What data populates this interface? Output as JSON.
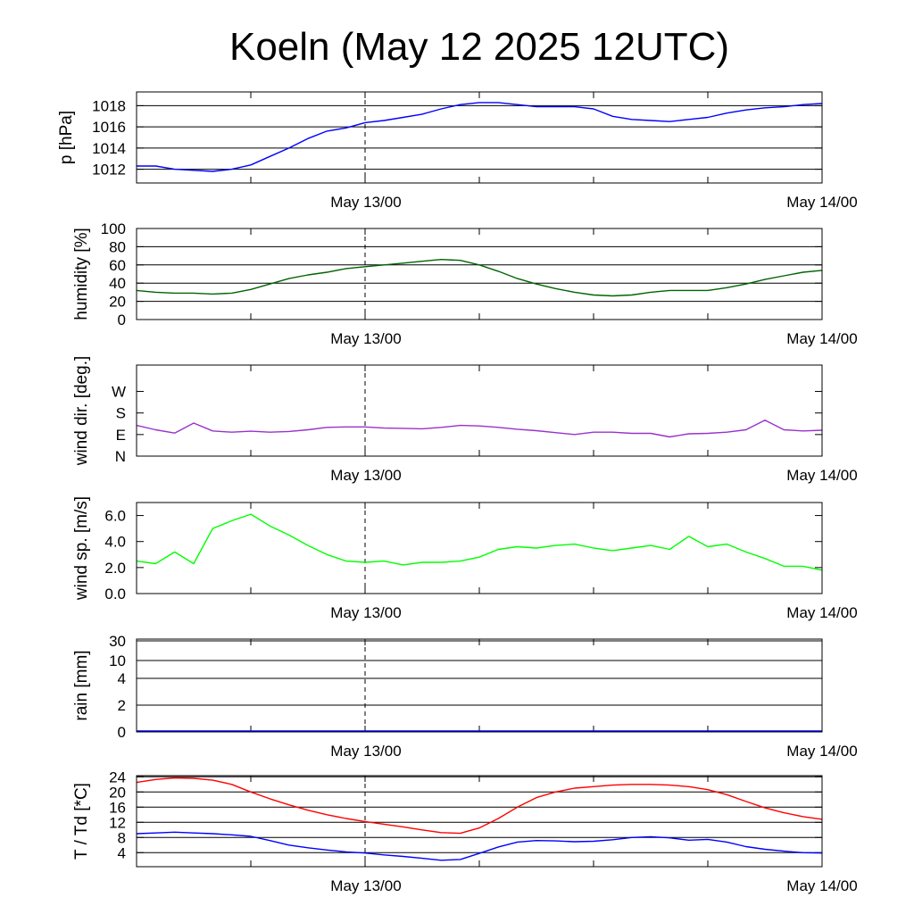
{
  "title": "Koeln (May 12 2025 12UTC)",
  "chart_data": [
    {
      "type": "line",
      "ylabel": "p [hPa]",
      "ylim": [
        1010.7,
        1019.3
      ],
      "yticks": [
        "1012",
        "1014",
        "1016",
        "1018"
      ],
      "grid": "horizontal",
      "xticks": [
        "May 13/00",
        "May 14/00"
      ],
      "x_hours": [
        0,
        1,
        2,
        3,
        4,
        5,
        6,
        7,
        8,
        9,
        10,
        11,
        12,
        13,
        14,
        15,
        16,
        17,
        18,
        19,
        20,
        21,
        22,
        23,
        24,
        25,
        26,
        27,
        28,
        29,
        30,
        31,
        32,
        33,
        34,
        35,
        36
      ],
      "series": [
        {
          "color": "#0000ff",
          "values": [
            1012.3,
            1012.3,
            1012.0,
            1011.9,
            1011.8,
            1012.0,
            1012.4,
            1013.2,
            1014.0,
            1014.9,
            1015.6,
            1015.9,
            1016.4,
            1016.6,
            1016.9,
            1017.2,
            1017.7,
            1018.1,
            1018.3,
            1018.3,
            1018.1,
            1017.9,
            1017.9,
            1017.9,
            1017.7,
            1017.0,
            1016.7,
            1016.6,
            1016.5,
            1016.7,
            1016.9,
            1017.3,
            1017.6,
            1017.8,
            1017.9,
            1018.1,
            1018.2
          ]
        }
      ]
    },
    {
      "type": "line",
      "ylabel": "humidity [%]",
      "ylim": [
        0,
        100
      ],
      "yticks": [
        "0",
        "20",
        "40",
        "60",
        "80",
        "100"
      ],
      "grid": "horizontal",
      "xticks": [
        "May 13/00",
        "May 14/00"
      ],
      "x_hours": [
        0,
        1,
        2,
        3,
        4,
        5,
        6,
        7,
        8,
        9,
        10,
        11,
        12,
        13,
        14,
        15,
        16,
        17,
        18,
        19,
        20,
        21,
        22,
        23,
        24,
        25,
        26,
        27,
        28,
        29,
        30,
        31,
        32,
        33,
        34,
        35,
        36
      ],
      "series": [
        {
          "color": "#006400",
          "values": [
            32,
            30,
            29,
            29,
            28,
            29,
            33,
            39,
            45,
            49,
            52,
            56,
            58,
            60,
            62,
            64,
            66,
            65,
            60,
            53,
            45,
            39,
            34,
            30,
            27,
            26,
            27,
            30,
            32,
            32,
            32,
            35,
            39,
            44,
            48,
            52,
            54
          ]
        }
      ]
    },
    {
      "type": "line",
      "ylabel": "wind dir. [deg.]",
      "ylim": [
        0,
        380
      ],
      "yticks": [
        "N",
        "E",
        "S",
        "W"
      ],
      "ytick_values": [
        0,
        90,
        180,
        270
      ],
      "grid": "none",
      "xticks": [
        "May 13/00",
        "May 14/00"
      ],
      "x_hours": [
        0,
        1,
        2,
        3,
        4,
        5,
        6,
        7,
        8,
        9,
        10,
        11,
        12,
        13,
        14,
        15,
        16,
        17,
        18,
        19,
        20,
        21,
        22,
        23,
        24,
        25,
        26,
        27,
        28,
        29,
        30,
        31,
        32,
        33,
        34,
        35,
        36
      ],
      "series": [
        {
          "color": "#9932cc",
          "values": [
            128,
            110,
            96,
            138,
            105,
            100,
            104,
            100,
            103,
            110,
            120,
            122,
            122,
            117,
            116,
            114,
            120,
            128,
            126,
            120,
            112,
            106,
            98,
            90,
            100,
            100,
            95,
            95,
            80,
            93,
            95,
            100,
            110,
            150,
            110,
            105,
            108
          ]
        }
      ]
    },
    {
      "type": "line",
      "ylabel": "wind sp. [m/s]",
      "ylim": [
        0,
        7
      ],
      "yticks": [
        "0.0",
        "2.0",
        "4.0",
        "6.0"
      ],
      "grid": "none",
      "xticks": [
        "May 13/00",
        "May 14/00"
      ],
      "x_hours": [
        0,
        1,
        2,
        3,
        4,
        5,
        6,
        7,
        8,
        9,
        10,
        11,
        12,
        13,
        14,
        15,
        16,
        17,
        18,
        19,
        20,
        21,
        22,
        23,
        24,
        25,
        26,
        27,
        28,
        29,
        30,
        31,
        32,
        33,
        34,
        35,
        36
      ],
      "series": [
        {
          "color": "#00ff00",
          "values": [
            2.5,
            2.3,
            3.2,
            2.3,
            5.0,
            5.6,
            6.1,
            5.2,
            4.5,
            3.7,
            3.0,
            2.5,
            2.4,
            2.5,
            2.2,
            2.4,
            2.4,
            2.5,
            2.8,
            3.4,
            3.6,
            3.5,
            3.7,
            3.8,
            3.5,
            3.3,
            3.5,
            3.7,
            3.4,
            4.4,
            3.6,
            3.8,
            3.2,
            2.7,
            2.1,
            2.1,
            1.8
          ]
        }
      ]
    },
    {
      "type": "line",
      "ylabel": "rain [mm]",
      "yticks": [
        "0",
        "2",
        "4",
        "10",
        "30"
      ],
      "grid": "horizontal",
      "xticks": [
        "May 13/00",
        "May 14/00"
      ],
      "x_hours": [
        0,
        36
      ],
      "series": [
        {
          "color": "#0000ff",
          "values": [
            0,
            0
          ]
        }
      ]
    },
    {
      "type": "line",
      "ylabel": "T / Td [*C]",
      "ylim": [
        0.3,
        24.3
      ],
      "yticks": [
        "4",
        "8",
        "12",
        "16",
        "20",
        "24"
      ],
      "grid": "horizontal",
      "xticks": [
        "May 13/00",
        "May 14/00"
      ],
      "x_hours": [
        0,
        1,
        2,
        3,
        4,
        5,
        6,
        7,
        8,
        9,
        10,
        11,
        12,
        13,
        14,
        15,
        16,
        17,
        18,
        19,
        20,
        21,
        22,
        23,
        24,
        25,
        26,
        27,
        28,
        29,
        30,
        31,
        32,
        33,
        34,
        35,
        36
      ],
      "series": [
        {
          "color": "#ff0000",
          "values": [
            22.5,
            23.3,
            23.7,
            23.6,
            23.1,
            22.0,
            20.0,
            18.2,
            16.6,
            15.2,
            14.0,
            13.0,
            12.2,
            11.5,
            10.8,
            10.0,
            9.3,
            9.1,
            10.5,
            13.0,
            16.0,
            18.5,
            20.0,
            21.0,
            21.4,
            21.8,
            22.0,
            22.0,
            21.8,
            21.4,
            20.6,
            19.3,
            17.5,
            15.8,
            14.5,
            13.5,
            12.8
          ]
        },
        {
          "color": "#0000ff",
          "values": [
            9.0,
            9.2,
            9.4,
            9.2,
            9.0,
            8.7,
            8.3,
            7.2,
            6.0,
            5.3,
            4.7,
            4.2,
            3.9,
            3.4,
            3.0,
            2.5,
            2.0,
            2.2,
            3.8,
            5.5,
            6.8,
            7.2,
            7.1,
            6.9,
            7.0,
            7.4,
            8.0,
            8.2,
            7.9,
            7.3,
            7.5,
            6.8,
            5.6,
            4.9,
            4.4,
            4.0,
            3.9
          ]
        }
      ]
    }
  ]
}
